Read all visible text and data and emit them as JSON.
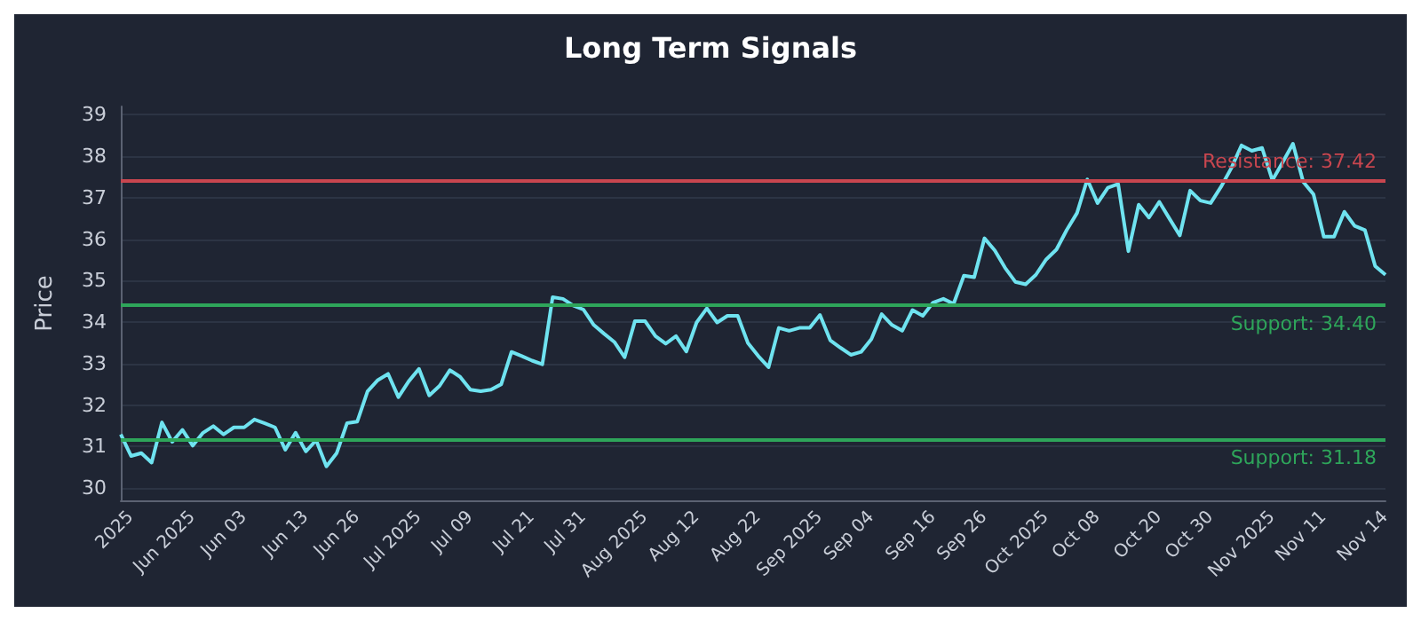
{
  "chart_data": {
    "type": "line",
    "title": "Long Term Signals",
    "ylabel": "Price",
    "categories": [
      null,
      "2025",
      null,
      null,
      null,
      null,
      null,
      "Jun 2025",
      null,
      null,
      null,
      null,
      "Jun 03",
      null,
      null,
      null,
      null,
      null,
      "Jun 13",
      null,
      null,
      null,
      null,
      "Jun 26",
      null,
      null,
      null,
      null,
      null,
      "Jul 2025",
      null,
      null,
      null,
      null,
      "Jul 09",
      null,
      null,
      null,
      null,
      null,
      "Jul 21",
      null,
      null,
      null,
      null,
      "Jul 31",
      null,
      null,
      null,
      null,
      null,
      "Aug 2025",
      null,
      null,
      null,
      null,
      "Aug 12",
      null,
      null,
      null,
      null,
      null,
      "Aug 22",
      null,
      null,
      null,
      null,
      null,
      "Sep 2025",
      null,
      null,
      null,
      null,
      "Sep 04",
      null,
      null,
      null,
      null,
      null,
      "Sep 16",
      null,
      null,
      null,
      null,
      "Sep 26",
      null,
      null,
      null,
      null,
      null,
      "Oct 2025",
      null,
      null,
      null,
      null,
      "Oct 08",
      null,
      null,
      null,
      null,
      null,
      "Oct 20",
      null,
      null,
      null,
      null,
      "Oct 30",
      null,
      null,
      null,
      null,
      null,
      "Nov 2025",
      null,
      null,
      null,
      null,
      "Nov 11",
      null,
      null,
      null,
      null,
      null,
      "Nov 14"
    ],
    "series": [
      {
        "color": "#6fe3f0",
        "values": [
          31.29,
          30.77,
          30.84,
          30.61,
          31.58,
          31.11,
          31.4,
          31.02,
          31.33,
          31.49,
          31.29,
          31.46,
          31.46,
          31.65,
          31.56,
          31.46,
          30.92,
          31.33,
          30.88,
          31.15,
          30.52,
          30.84,
          31.56,
          31.6,
          32.33,
          32.6,
          32.75,
          32.19,
          32.57,
          32.87,
          32.23,
          32.46,
          32.84,
          32.68,
          32.37,
          32.33,
          32.37,
          32.5,
          33.28,
          33.18,
          33.07,
          32.98,
          34.6,
          34.56,
          34.4,
          34.3,
          33.93,
          33.72,
          33.52,
          33.15,
          34.02,
          34.02,
          33.66,
          33.48,
          33.66,
          33.29,
          33.99,
          34.33,
          33.99,
          34.15,
          34.15,
          33.49,
          33.18,
          32.91,
          33.86,
          33.79,
          33.86,
          33.86,
          34.17,
          33.56,
          33.38,
          33.21,
          33.28,
          33.59,
          34.19,
          33.93,
          33.79,
          34.29,
          34.15,
          34.47,
          34.56,
          34.44,
          35.12,
          35.08,
          36.02,
          35.73,
          35.31,
          34.97,
          34.91,
          35.14,
          35.51,
          35.75,
          36.22,
          36.63,
          37.44,
          36.87,
          37.24,
          37.33,
          35.71,
          36.83,
          36.52,
          36.9,
          36.49,
          36.09,
          37.17,
          36.93,
          36.87,
          37.26,
          37.71,
          38.26,
          38.13,
          38.2,
          37.42,
          37.85,
          38.3,
          37.38,
          37.08,
          36.06,
          36.06,
          36.66,
          36.32,
          36.22,
          35.35,
          35.14
        ]
      }
    ],
    "ylim": [
      29.7,
      39.2
    ],
    "yticks": [
      30,
      31,
      32,
      33,
      34,
      35,
      36,
      37,
      38,
      39
    ],
    "ref_lines": [
      {
        "axis": "y",
        "value": 37.42,
        "label": "Resistance: 37.42",
        "color": "#c8464f"
      },
      {
        "axis": "y",
        "value": 34.4,
        "label": "Support: 34.40",
        "color": "#2ea55a"
      },
      {
        "axis": "y",
        "value": 31.18,
        "label": "Support: 31.18",
        "color": "#2ea55a"
      }
    ],
    "grid": "y",
    "marker": "none"
  }
}
